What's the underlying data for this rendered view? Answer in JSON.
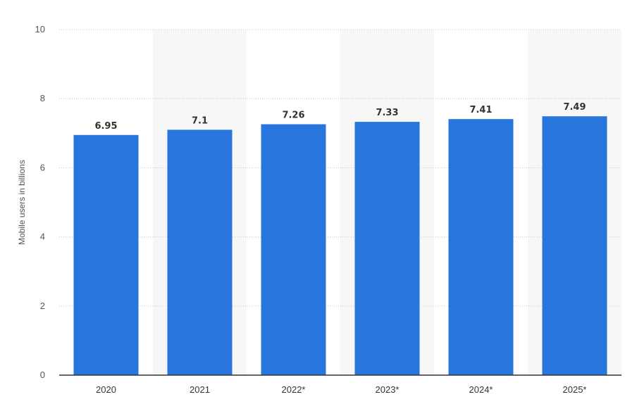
{
  "chart_data": {
    "type": "bar",
    "title": "",
    "xlabel": "",
    "ylabel": "Mobile users in billions",
    "categories": [
      "2020",
      "2021",
      "2022*",
      "2023*",
      "2024*",
      "2025*"
    ],
    "values": [
      6.95,
      7.1,
      7.26,
      7.33,
      7.41,
      7.49
    ],
    "value_labels": [
      "6.95",
      "7.1",
      "7.26",
      "7.33",
      "7.41",
      "7.49"
    ],
    "ylim": [
      0,
      10
    ],
    "yticks": [
      0,
      2,
      4,
      6,
      8,
      10
    ],
    "ytick_labels": [
      "0",
      "2",
      "4",
      "6",
      "8",
      "10"
    ],
    "grid": true,
    "grid_style": "dotted",
    "alternating_column_bands": true,
    "colors": {
      "bar": "#2876DD",
      "band": "#F7F7F7",
      "grid": "#C8C8C8",
      "axis": "#333333"
    }
  }
}
